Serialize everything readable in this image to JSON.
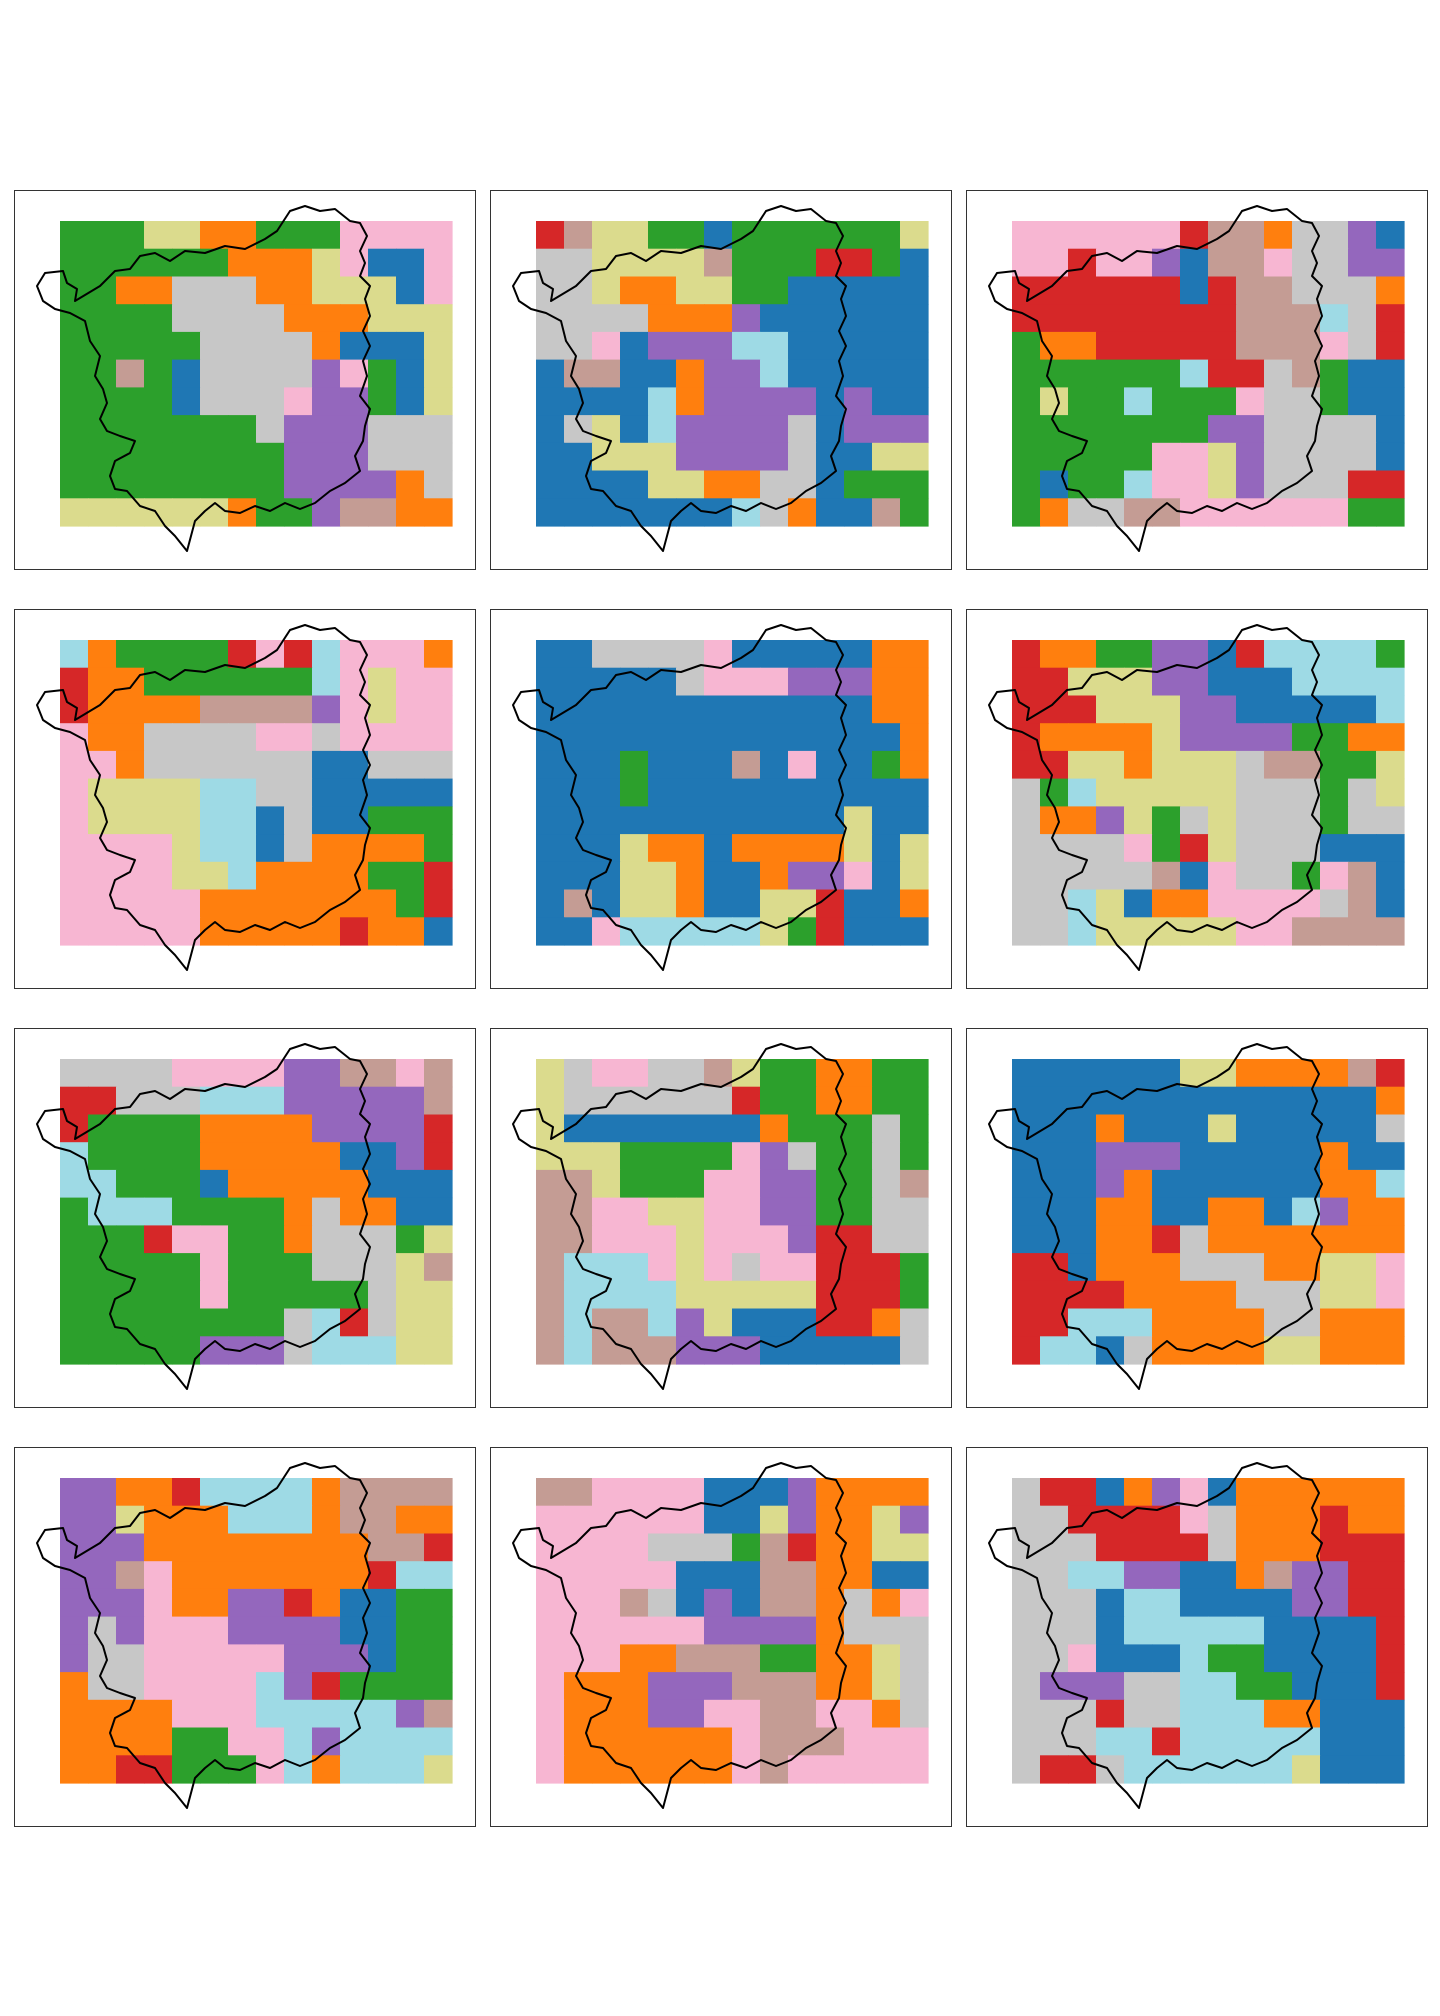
{
  "palette": {
    "blue": "#1f77b4",
    "orange": "#ff7f0e",
    "green": "#2ca02c",
    "red": "#d62728",
    "purple": "#9467bd",
    "tan": "#c49c94",
    "pink": "#f7b6d2",
    "gray": "#c7c7c7",
    "olive": "#dbdb8d",
    "cyan": "#9edae5"
  },
  "grid": {
    "rows": 11,
    "cols": 14
  },
  "maps": [
    {
      "seed": 11
    },
    {
      "seed": 23
    },
    {
      "seed": 37
    },
    {
      "seed": 41
    },
    {
      "seed": 53
    },
    {
      "seed": 67
    },
    {
      "seed": 71
    },
    {
      "seed": 83
    },
    {
      "seed": 97
    },
    {
      "seed": 101
    },
    {
      "seed": 113
    },
    {
      "seed": 127
    }
  ]
}
